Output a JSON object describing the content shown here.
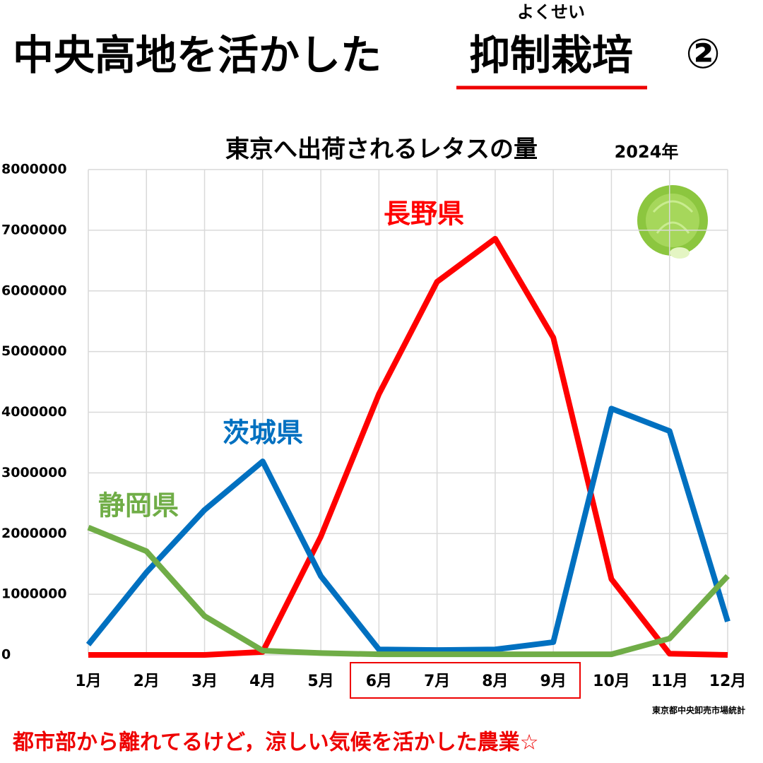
{
  "header": {
    "title": "中央高地を活かした",
    "emphasis": "抑制栽培",
    "ruby": "よくせい",
    "number": "②"
  },
  "chart_data": {
    "type": "line",
    "title": "東京へ出荷されるレタスの量",
    "year": "2024年",
    "categories": [
      "1月",
      "2月",
      "3月",
      "4月",
      "5月",
      "6月",
      "7月",
      "8月",
      "9月",
      "10月",
      "11月",
      "12月"
    ],
    "series": [
      {
        "name": "長野県",
        "color": "#ff0000",
        "values": [
          0,
          0,
          0,
          50000,
          1950000,
          4300000,
          6150000,
          6860000,
          5230000,
          1250000,
          20000,
          0
        ]
      },
      {
        "name": "茨城県",
        "color": "#0070c0",
        "values": [
          170000,
          1360000,
          2390000,
          3190000,
          1300000,
          90000,
          80000,
          90000,
          210000,
          4060000,
          3690000,
          550000
        ]
      },
      {
        "name": "静岡県",
        "color": "#70ad47",
        "values": [
          2100000,
          1710000,
          640000,
          70000,
          30000,
          10000,
          10000,
          10000,
          10000,
          10000,
          270000,
          1300000
        ]
      }
    ],
    "ylim": [
      0,
      8000000
    ],
    "yticks": [
      0,
      1000000,
      2000000,
      3000000,
      4000000,
      5000000,
      6000000,
      7000000,
      8000000
    ],
    "grid": true,
    "source": "東京都中央卸売市場統計"
  },
  "footer": "都市部から離れてるけど，涼しい気候を活かした農業☆"
}
